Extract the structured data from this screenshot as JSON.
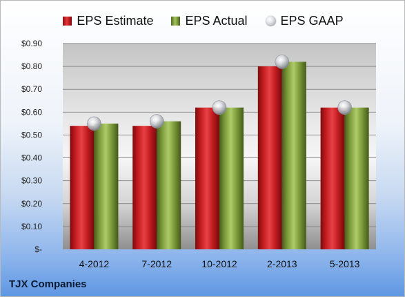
{
  "chart_data": {
    "type": "bar",
    "categories": [
      "4-2012",
      "7-2012",
      "10-2012",
      "2-2013",
      "5-2013"
    ],
    "series": [
      {
        "name": "EPS Estimate",
        "kind": "bar",
        "color": "#c8252a",
        "values": [
          0.54,
          0.54,
          0.62,
          0.8,
          0.62
        ]
      },
      {
        "name": "EPS Actual",
        "kind": "bar",
        "color": "#8fb04a",
        "values": [
          0.55,
          0.56,
          0.62,
          0.82,
          0.62
        ]
      },
      {
        "name": "EPS GAAP",
        "kind": "marker",
        "color": "#b9bdc4",
        "values": [
          0.55,
          0.56,
          0.62,
          0.82,
          0.62
        ]
      }
    ],
    "y_ticks": [
      {
        "value": 0,
        "label": "$-"
      },
      {
        "value": 0.1,
        "label": "$0.10"
      },
      {
        "value": 0.2,
        "label": "$0.20"
      },
      {
        "value": 0.3,
        "label": "$0.30"
      },
      {
        "value": 0.4,
        "label": "$0.40"
      },
      {
        "value": 0.5,
        "label": "$0.50"
      },
      {
        "value": 0.6,
        "label": "$0.60"
      },
      {
        "value": 0.7,
        "label": "$0.70"
      },
      {
        "value": 0.8,
        "label": "$0.80"
      },
      {
        "value": 0.9,
        "label": "$0.90"
      }
    ],
    "ylim": [
      0,
      0.9
    ],
    "grid": true,
    "legend_position": "top"
  },
  "footer": {
    "company": "TJX Companies"
  }
}
